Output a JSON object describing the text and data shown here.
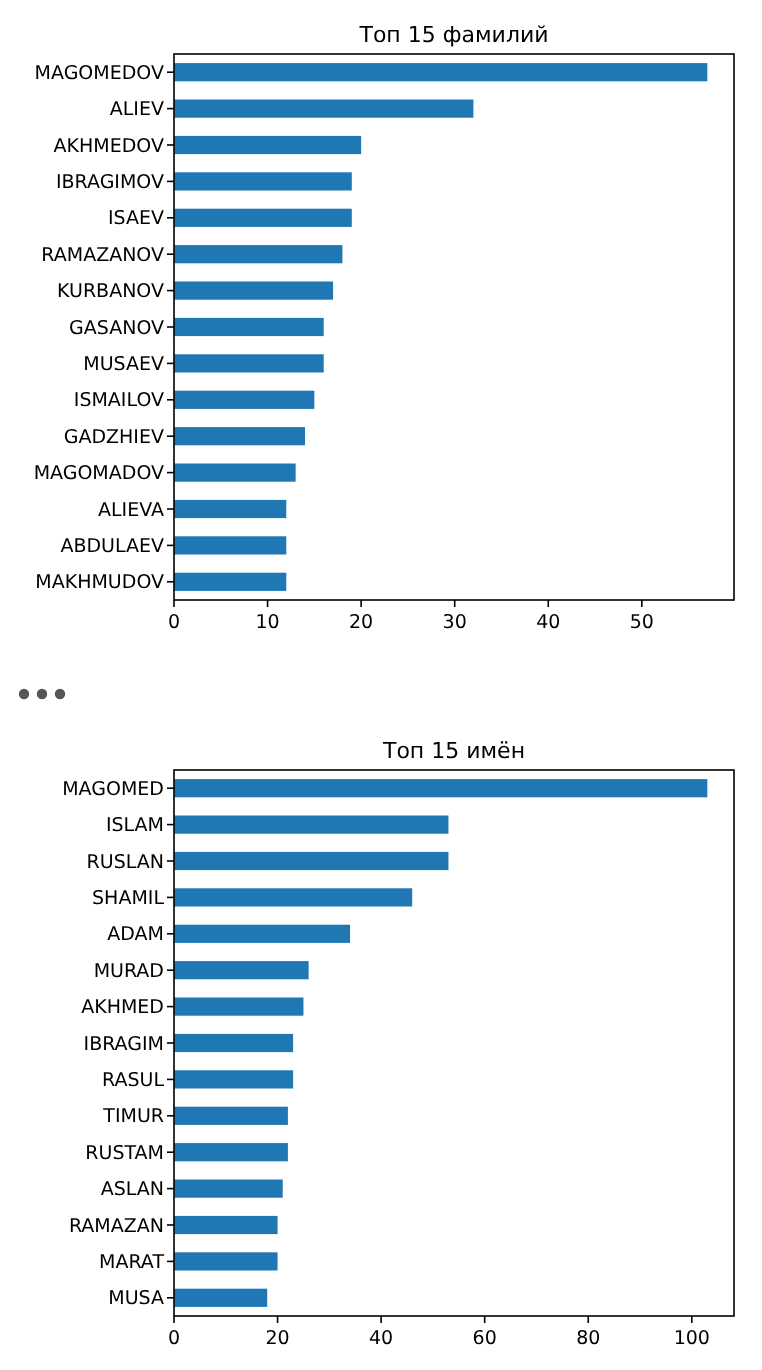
{
  "chart_data": [
    {
      "type": "bar",
      "orientation": "horizontal",
      "title": "Топ 15 фамилий",
      "categories": [
        "MAGOMEDOV",
        "ALIEV",
        "AKHMEDOV",
        "IBRAGIMOV",
        "ISAEV",
        "RAMAZANOV",
        "KURBANOV",
        "GASANOV",
        "MUSAEV",
        "ISMAILOV",
        "GADZHIEV",
        "MAGOMADOV",
        "ALIEVA",
        "ABDULAEV",
        "MAKHMUDOV"
      ],
      "values": [
        57,
        32,
        20,
        19,
        19,
        18,
        17,
        16,
        16,
        15,
        14,
        13,
        12,
        12,
        12
      ],
      "color": "#1f77b4",
      "xlim": [
        0,
        59.85
      ],
      "xticks": [
        0,
        10,
        20,
        30,
        40,
        50
      ]
    },
    {
      "type": "bar",
      "orientation": "horizontal",
      "title": "Топ 15 имён",
      "categories": [
        "MAGOMED",
        "ISLAM",
        "RUSLAN",
        "SHAMIL",
        "ADAM",
        "MURAD",
        "AKHMED",
        "IBRAGIM",
        "RASUL",
        "TIMUR",
        "RUSTAM",
        "ASLAN",
        "RAMAZAN",
        "MARAT",
        "MUSA"
      ],
      "values": [
        103,
        53,
        53,
        46,
        34,
        26,
        25,
        23,
        23,
        22,
        22,
        21,
        20,
        20,
        18
      ],
      "color": "#1f77b4",
      "xlim": [
        0,
        108.15
      ],
      "xticks": [
        0,
        20,
        40,
        60,
        80,
        100
      ]
    }
  ]
}
